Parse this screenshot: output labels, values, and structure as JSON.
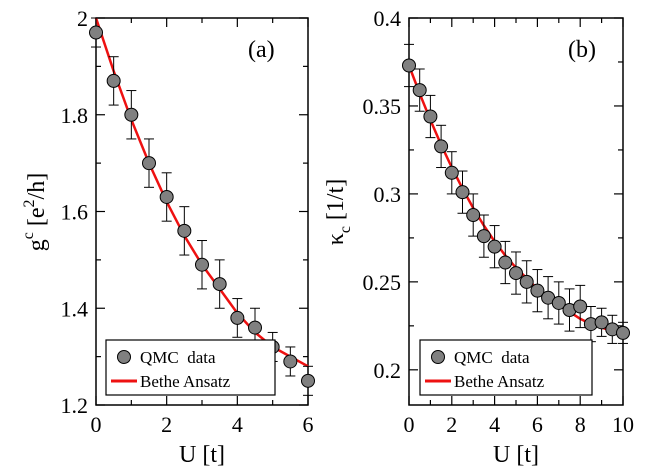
{
  "chart_data": [
    {
      "type": "scatter",
      "panel_label": "(a)",
      "xlabel": "U [t]",
      "ylabel_main": "g",
      "ylabel_super": "c",
      "ylabel_rest": " [e",
      "ylabel_super2": "2",
      "ylabel_end": "/h]",
      "xlim": [
        0,
        6
      ],
      "ylim": [
        1.2,
        2.0
      ],
      "xticks": [
        0,
        2,
        4,
        6
      ],
      "xtick_labels": [
        "0",
        "2",
        "4",
        "6"
      ],
      "yticks": [
        1.2,
        1.4,
        1.6,
        1.8,
        2.0
      ],
      "ytick_labels": [
        "1.2",
        "1.4",
        "1.6",
        "1.8",
        "2"
      ],
      "legend_position": "bottom-left",
      "series": [
        {
          "name": "QMC  data",
          "kind": "points_with_errorbars",
          "color": "#808080",
          "x": [
            0,
            0.5,
            1.0,
            1.5,
            2.0,
            2.5,
            3.0,
            3.5,
            4.0,
            4.5,
            5.0,
            5.5,
            6.0
          ],
          "y": [
            1.97,
            1.87,
            1.8,
            1.7,
            1.63,
            1.56,
            1.49,
            1.45,
            1.38,
            1.36,
            1.32,
            1.29,
            1.25
          ],
          "err": [
            0.03,
            0.05,
            0.05,
            0.05,
            0.05,
            0.05,
            0.05,
            0.05,
            0.04,
            0.04,
            0.03,
            0.03,
            0.03
          ]
        },
        {
          "name": "Bethe Ansatz",
          "kind": "line",
          "color": "#ee1111",
          "x": [
            0,
            0.5,
            1.0,
            1.5,
            2.0,
            2.5,
            3.0,
            3.5,
            4.0,
            4.5,
            5.0,
            5.5,
            6.0
          ],
          "y": [
            2.0,
            1.89,
            1.79,
            1.7,
            1.62,
            1.55,
            1.49,
            1.44,
            1.39,
            1.35,
            1.32,
            1.3,
            1.28
          ]
        }
      ]
    },
    {
      "type": "scatter",
      "panel_label": "(b)",
      "xlabel": "U [t]",
      "ylabel_main": "κ",
      "ylabel_sub": "c",
      "ylabel_rest": " [1/t]",
      "xlim": [
        0,
        10
      ],
      "ylim": [
        0.18,
        0.4
      ],
      "xticks": [
        0,
        2,
        4,
        6,
        8,
        10
      ],
      "xtick_labels": [
        "0",
        "2",
        "4",
        "6",
        "8",
        "10"
      ],
      "yticks": [
        0.2,
        0.25,
        0.3,
        0.35,
        0.4
      ],
      "ytick_labels": [
        "0.2",
        "0.25",
        "0.3",
        "0.35",
        "0.4"
      ],
      "legend_position": "bottom-left",
      "series": [
        {
          "name": "QMC  data",
          "kind": "points_with_errorbars",
          "color": "#808080",
          "x": [
            0,
            0.5,
            1.0,
            1.5,
            2.0,
            2.5,
            3.0,
            3.5,
            4.0,
            4.5,
            5.0,
            5.5,
            6.0,
            6.5,
            7.0,
            7.5,
            8.0,
            8.5,
            9.0,
            9.5,
            10.0
          ],
          "y": [
            0.373,
            0.359,
            0.344,
            0.327,
            0.312,
            0.301,
            0.288,
            0.276,
            0.27,
            0.261,
            0.255,
            0.25,
            0.245,
            0.241,
            0.238,
            0.234,
            0.236,
            0.226,
            0.227,
            0.223,
            0.221
          ],
          "err": [
            0.012,
            0.012,
            0.012,
            0.012,
            0.012,
            0.012,
            0.012,
            0.012,
            0.012,
            0.012,
            0.012,
            0.012,
            0.012,
            0.012,
            0.012,
            0.012,
            0.012,
            0.01,
            0.008,
            0.008,
            0.006
          ]
        },
        {
          "name": "Bethe Ansatz",
          "kind": "line",
          "color": "#ee1111",
          "x": [
            0,
            0.5,
            1.0,
            1.5,
            2.0,
            2.5,
            3.0,
            3.5,
            4.0,
            4.5,
            5.0,
            5.5,
            6.0,
            6.5,
            7.0,
            7.5,
            8.0,
            8.5,
            9.0,
            9.5,
            10.0
          ],
          "y": [
            0.373,
            0.357,
            0.342,
            0.328,
            0.315,
            0.303,
            0.292,
            0.282,
            0.273,
            0.265,
            0.258,
            0.252,
            0.246,
            0.241,
            0.237,
            0.233,
            0.229,
            0.226,
            0.224,
            0.222,
            0.22
          ]
        }
      ]
    }
  ]
}
